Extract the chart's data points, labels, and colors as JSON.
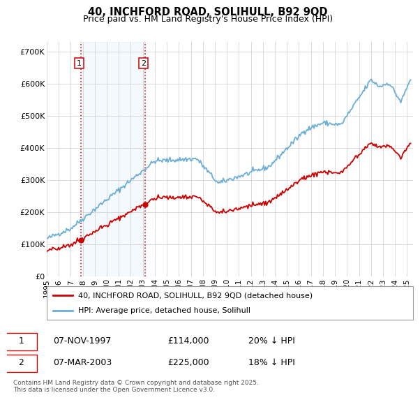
{
  "title": "40, INCHFORD ROAD, SOLIHULL, B92 9QD",
  "subtitle": "Price paid vs. HM Land Registry's House Price Index (HPI)",
  "legend_line1": "40, INCHFORD ROAD, SOLIHULL, B92 9QD (detached house)",
  "legend_line2": "HPI: Average price, detached house, Solihull",
  "annotation_footnote": "Contains HM Land Registry data © Crown copyright and database right 2025.\nThis data is licensed under the Open Government Licence v3.0.",
  "sale1_date": "07-NOV-1997",
  "sale1_price": "£114,000",
  "sale1_hpi": "20% ↓ HPI",
  "sale2_date": "07-MAR-2003",
  "sale2_price": "£225,000",
  "sale2_hpi": "18% ↓ HPI",
  "hpi_color": "#6baed6",
  "price_color": "#cc0000",
  "vline_color": "#cc0000",
  "shade_color": "#d0e8f5",
  "ylim": [
    0,
    730000
  ],
  "xlim_start": 1995.0,
  "xlim_end": 2025.5,
  "sale1_x": 1997.85,
  "sale1_y": 114000,
  "sale2_x": 2003.18,
  "sale2_y": 225000,
  "yticks": [
    0,
    100000,
    200000,
    300000,
    400000,
    500000,
    600000,
    700000
  ],
  "ytick_labels": [
    "£0",
    "£100K",
    "£200K",
    "£300K",
    "£400K",
    "£500K",
    "£600K",
    "£700K"
  ],
  "xticks": [
    1995,
    1996,
    1997,
    1998,
    1999,
    2000,
    2001,
    2002,
    2003,
    2004,
    2005,
    2006,
    2007,
    2008,
    2009,
    2010,
    2011,
    2012,
    2013,
    2014,
    2015,
    2016,
    2017,
    2018,
    2019,
    2020,
    2021,
    2022,
    2023,
    2024,
    2025
  ]
}
